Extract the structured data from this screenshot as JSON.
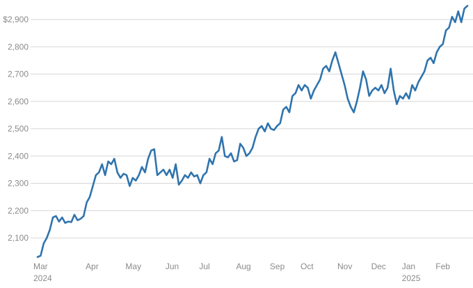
{
  "chart_data": {
    "type": "line",
    "color": "#2f74ad",
    "grid": true,
    "ylim": [
      2030,
      2965
    ],
    "yticks": [
      {
        "value": 2100,
        "label": "2,100"
      },
      {
        "value": 2200,
        "label": "2,200"
      },
      {
        "value": 2300,
        "label": "2,300"
      },
      {
        "value": 2400,
        "label": "2,400"
      },
      {
        "value": 2500,
        "label": "2,500"
      },
      {
        "value": 2600,
        "label": "2,600"
      },
      {
        "value": 2700,
        "label": "2,700"
      },
      {
        "value": 2800,
        "label": "2,800"
      },
      {
        "value": 2900,
        "label": "$2,900"
      }
    ],
    "categories": [
      "Mar",
      null,
      null,
      null,
      null,
      null,
      null,
      null,
      null,
      null,
      null,
      null,
      null,
      null,
      null,
      null,
      null,
      "Apr",
      null,
      null,
      null,
      null,
      null,
      null,
      null,
      null,
      null,
      null,
      null,
      null,
      "May",
      null,
      null,
      null,
      null,
      null,
      null,
      null,
      null,
      null,
      null,
      null,
      null,
      "Jun",
      null,
      null,
      null,
      null,
      null,
      null,
      null,
      null,
      null,
      null,
      "Jul",
      null,
      null,
      null,
      null,
      null,
      null,
      null,
      null,
      null,
      null,
      null,
      "Aug",
      null,
      null,
      null,
      null,
      null,
      null,
      null,
      null,
      null,
      null,
      "Sep",
      null,
      null,
      null,
      null,
      null,
      null,
      null,
      null,
      null,
      "Oct",
      null,
      null,
      null,
      null,
      null,
      null,
      null,
      null,
      null,
      null,
      null,
      "Nov",
      null,
      null,
      null,
      null,
      null,
      null,
      null,
      null,
      null,
      null,
      "Dec",
      null,
      null,
      null,
      null,
      null,
      null,
      null,
      null,
      null,
      "Jan",
      null,
      null,
      null,
      null,
      null,
      null,
      null,
      null,
      null,
      null,
      "Feb",
      null,
      null,
      null,
      null,
      null,
      null,
      null,
      null,
      null
    ],
    "category_years": [
      "2024",
      null,
      null,
      null,
      null,
      null,
      null,
      null,
      null,
      null,
      null,
      null,
      null,
      null,
      null,
      null,
      null,
      null,
      null,
      null,
      null,
      null,
      null,
      null,
      null,
      null,
      null,
      null,
      null,
      null,
      null,
      null,
      null,
      null,
      null,
      null,
      null,
      null,
      null,
      null,
      null,
      null,
      null,
      null,
      null,
      null,
      null,
      null,
      null,
      null,
      null,
      null,
      null,
      null,
      null,
      null,
      null,
      null,
      null,
      null,
      null,
      null,
      null,
      null,
      null,
      null,
      null,
      null,
      null,
      null,
      null,
      null,
      null,
      null,
      null,
      null,
      null,
      null,
      null,
      null,
      null,
      null,
      null,
      null,
      null,
      null,
      null,
      null,
      null,
      null,
      null,
      null,
      null,
      null,
      null,
      null,
      null,
      null,
      null,
      null,
      null,
      null,
      null,
      null,
      null,
      null,
      null,
      null,
      null,
      null,
      null,
      null,
      null,
      null,
      null,
      null,
      null,
      null,
      null,
      null,
      "2025",
      null,
      null,
      null,
      null,
      null,
      null,
      null,
      null,
      null,
      null,
      null,
      null,
      null,
      null,
      null,
      null,
      null,
      null,
      null,
      null
    ],
    "values": [
      2030,
      2035,
      2080,
      2100,
      2130,
      2175,
      2180,
      2160,
      2175,
      2155,
      2160,
      2158,
      2185,
      2165,
      2170,
      2180,
      2230,
      2250,
      2290,
      2330,
      2340,
      2370,
      2330,
      2380,
      2370,
      2390,
      2340,
      2320,
      2335,
      2330,
      2290,
      2320,
      2310,
      2330,
      2360,
      2340,
      2390,
      2420,
      2425,
      2330,
      2340,
      2350,
      2330,
      2350,
      2320,
      2370,
      2295,
      2310,
      2330,
      2320,
      2340,
      2325,
      2330,
      2300,
      2330,
      2340,
      2390,
      2370,
      2410,
      2420,
      2470,
      2400,
      2395,
      2410,
      2380,
      2385,
      2445,
      2430,
      2400,
      2410,
      2430,
      2470,
      2500,
      2510,
      2490,
      2520,
      2500,
      2495,
      2510,
      2520,
      2570,
      2580,
      2560,
      2620,
      2630,
      2660,
      2640,
      2660,
      2650,
      2610,
      2640,
      2660,
      2680,
      2720,
      2730,
      2710,
      2750,
      2780,
      2740,
      2700,
      2660,
      2610,
      2580,
      2560,
      2600,
      2650,
      2710,
      2680,
      2620,
      2640,
      2650,
      2640,
      2660,
      2630,
      2650,
      2720,
      2640,
      2590,
      2620,
      2610,
      2630,
      2610,
      2660,
      2640,
      2670,
      2690,
      2710,
      2750,
      2760,
      2740,
      2780,
      2800,
      2810,
      2860,
      2870,
      2910,
      2890,
      2930,
      2890,
      2940,
      2950
    ]
  }
}
